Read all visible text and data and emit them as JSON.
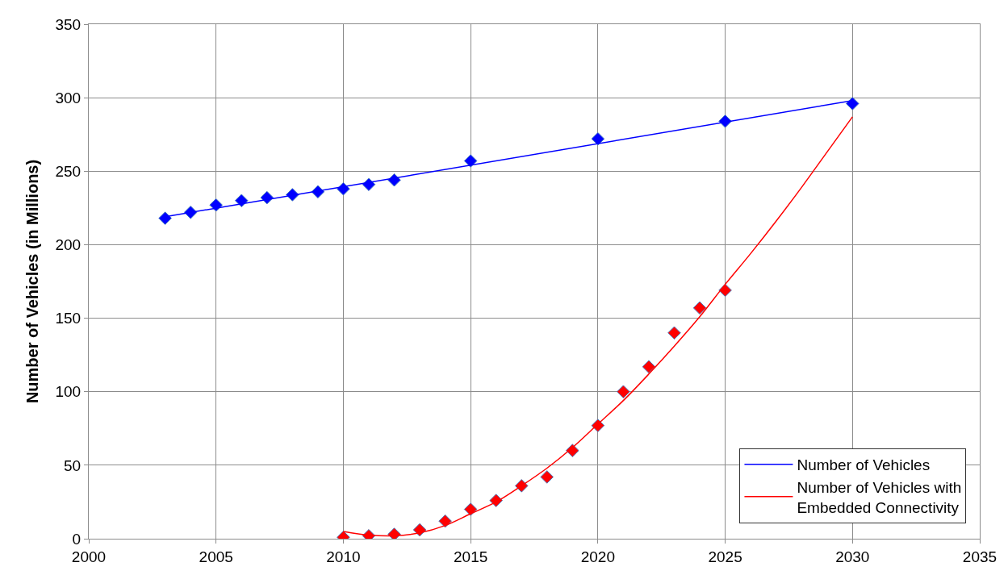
{
  "chart_data": {
    "type": "scatter",
    "ylabel": "Number of Vehicles (in Millions)",
    "xlim": [
      2000,
      2035
    ],
    "xticks": [
      2000,
      2005,
      2010,
      2015,
      2020,
      2025,
      2030,
      2035
    ],
    "ylim": [
      0,
      350
    ],
    "yticks": [
      0,
      50,
      100,
      150,
      200,
      250,
      300,
      350
    ],
    "grid": true,
    "legend": "bottom right",
    "marker": "diamond",
    "series": [
      {
        "color": "#0000ff",
        "x": [
          2003,
          2004,
          2005,
          2006,
          2007,
          2008,
          2009,
          2010,
          2011,
          2012,
          2015,
          2020,
          2025,
          2030
        ],
        "values": [
          218,
          222,
          227,
          230,
          232,
          234,
          236,
          238,
          241,
          244,
          257,
          272,
          284,
          296
        ]
      },
      {
        "color": "#ff0000",
        "x": [
          2010,
          2011,
          2012,
          2013,
          2014,
          2015,
          2016,
          2017,
          2018,
          2019,
          2020,
          2021,
          2022,
          2023,
          2024,
          2025
        ],
        "values": [
          1,
          2,
          3,
          6,
          12,
          20,
          26,
          36,
          42,
          60,
          77,
          100,
          117,
          140,
          157,
          169
        ]
      },
      {
        "type": "line",
        "name": "Number of Vehicles",
        "color": "#0000ff",
        "marker": "none",
        "x": [
          2003,
          2030
        ],
        "values": [
          219,
          298
        ]
      },
      {
        "type": "line",
        "name": "Number of Vehicles with Embedded Connectivity",
        "color": "#ff0000",
        "marker": "none",
        "x": [
          2010,
          2011,
          2012,
          2013,
          2014,
          2015,
          2016,
          2017,
          2018,
          2019,
          2020,
          2021,
          2022,
          2023,
          2024,
          2025,
          2026,
          2027,
          2028,
          2029,
          2030
        ],
        "values": [
          5,
          2.5,
          2,
          4,
          9,
          17,
          25,
          36,
          48,
          62,
          78,
          94,
          112,
          131,
          151,
          173,
          194,
          216,
          239,
          263,
          287
        ]
      }
    ]
  }
}
